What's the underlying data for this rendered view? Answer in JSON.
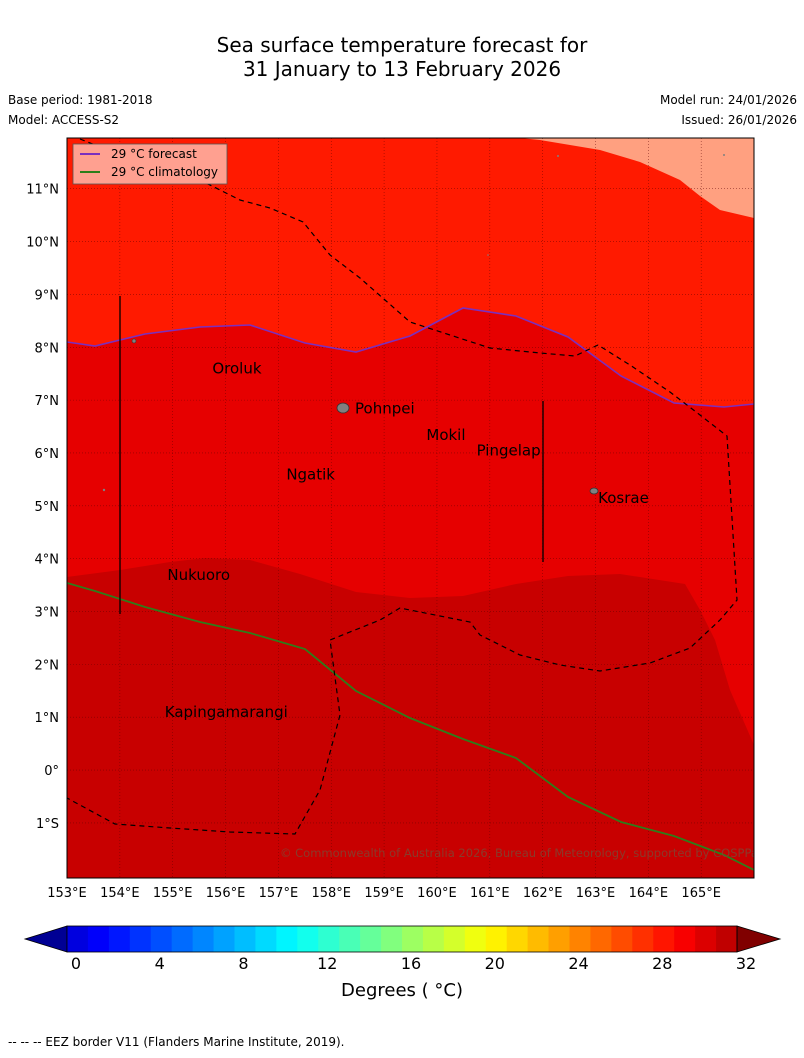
{
  "header": {
    "title_line1": "Sea surface temperature forecast for",
    "title_line2": "31 January to 13 February 2026",
    "base_period": "Base period: 1981-2018",
    "model": "Model: ACCESS-S2",
    "model_run": "Model run: 24/01/2026",
    "issued": "Issued: 26/01/2026"
  },
  "legend": {
    "forecast": "29 °C  forecast",
    "climatology": "29 °C  climatology",
    "forecast_color": "#7b2fbf",
    "climatology_color": "#2e7d1a"
  },
  "map": {
    "lon_range": [
      153,
      166
    ],
    "lat_range": [
      -2,
      12
    ],
    "lon_ticks": [
      "153°E",
      "154°E",
      "155°E",
      "156°E",
      "157°E",
      "158°E",
      "159°E",
      "160°E",
      "161°E",
      "162°E",
      "163°E",
      "164°E",
      "165°E"
    ],
    "lat_ticks": [
      {
        "lat": 11,
        "label": "11°N"
      },
      {
        "lat": 10,
        "label": "10°N"
      },
      {
        "lat": 9,
        "label": "9°N"
      },
      {
        "lat": 8,
        "label": "8°N"
      },
      {
        "lat": 7,
        "label": "7°N"
      },
      {
        "lat": 6,
        "label": "6°N"
      },
      {
        "lat": 5,
        "label": "5°N"
      },
      {
        "lat": 4,
        "label": "4°N"
      },
      {
        "lat": 3,
        "label": "3°N"
      },
      {
        "lat": 2,
        "label": "2°N"
      },
      {
        "lat": 1,
        "label": "1°N"
      },
      {
        "lat": 0,
        "label": "0°"
      },
      {
        "lat": -1,
        "label": "1°S"
      }
    ],
    "places": [
      {
        "name": "Oroluk",
        "lon": 155.75,
        "lat": 7.5
      },
      {
        "name": "Pohnpei",
        "lon": 158.45,
        "lat": 6.75
      },
      {
        "name": "Mokil",
        "lon": 159.8,
        "lat": 6.25
      },
      {
        "name": "Pingelap",
        "lon": 160.75,
        "lat": 5.95
      },
      {
        "name": "Ngatik",
        "lon": 157.15,
        "lat": 5.5
      },
      {
        "name": "Kosrae",
        "lon": 163.05,
        "lat": 5.05
      },
      {
        "name": "Nukuoro",
        "lon": 154.9,
        "lat": 3.6
      },
      {
        "name": "Kapingamarangi",
        "lon": 154.85,
        "lat": 1.0
      }
    ],
    "copyright": "© Commonwealth of Australia 2026, Bureau of Meteorology, supported by COSPPac"
  },
  "colorbar": {
    "ticks": [
      "0",
      "4",
      "8",
      "12",
      "16",
      "20",
      "24",
      "28",
      "32"
    ],
    "min": 0,
    "max": 32,
    "step": 1,
    "label": "Degrees ( °C)"
  },
  "footnote": "-- -- -- EEZ border V11 (Flanders Marine Institute, 2019).",
  "colors": {
    "sst_above_30": "#ffa080",
    "sst_29_30": "#ff1a00",
    "sst_28_29": "#e60000",
    "sst_27_28": "#c80000"
  }
}
